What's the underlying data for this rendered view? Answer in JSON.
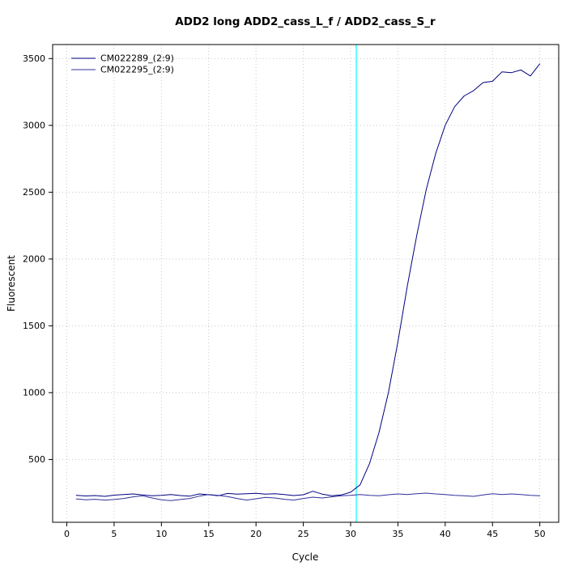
{
  "chart_data": {
    "type": "line",
    "title": "ADD2 long ADD2_cass_L_f / ADD2_cass_S_r",
    "xlabel": "Cycle",
    "ylabel": "Fluorescent",
    "xticks": [
      0,
      5,
      10,
      15,
      20,
      25,
      30,
      35,
      40,
      45,
      50
    ],
    "yticks": [
      500,
      1000,
      1500,
      2000,
      2500,
      3000,
      3500
    ],
    "xlim": [
      -1.5,
      52
    ],
    "ylim": [
      30,
      3605
    ],
    "grid": true,
    "legend_position": "top-left",
    "background_color": "#ffffff",
    "grid_color": "#c8c8c8",
    "axis_color": "#000000",
    "threshold_line": {
      "x": 30.6,
      "color": "#00ffff"
    },
    "x": [
      1,
      2,
      3,
      4,
      5,
      6,
      7,
      8,
      9,
      10,
      11,
      12,
      13,
      14,
      15,
      16,
      17,
      18,
      19,
      20,
      21,
      22,
      23,
      24,
      25,
      26,
      27,
      28,
      29,
      30,
      31,
      32,
      33,
      34,
      35,
      36,
      37,
      38,
      39,
      40,
      41,
      42,
      43,
      44,
      45,
      46,
      47,
      48,
      49,
      50
    ],
    "series": [
      {
        "name": "CM022289_(2:9)",
        "color": "#000080",
        "values": [
          232,
          227,
          230,
          224,
          233,
          238,
          242,
          234,
          228,
          232,
          238,
          230,
          226,
          242,
          236,
          229,
          246,
          240,
          244,
          247,
          241,
          244,
          238,
          230,
          236,
          262,
          241,
          229,
          234,
          255,
          310,
          470,
          700,
          1000,
          1380,
          1800,
          2180,
          2520,
          2790,
          3000,
          3140,
          3220,
          3260,
          3320,
          3330,
          3400,
          3395,
          3415,
          3370,
          3460
        ]
      },
      {
        "name": "CM022295_(2:9)",
        "color": "#31319c",
        "values": [
          205,
          198,
          202,
          196,
          200,
          208,
          220,
          228,
          212,
          198,
          192,
          200,
          208,
          226,
          238,
          232,
          222,
          208,
          196,
          206,
          216,
          212,
          202,
          196,
          208,
          218,
          212,
          220,
          228,
          232,
          238,
          232,
          228,
          236,
          242,
          238,
          244,
          248,
          242,
          238,
          232,
          228,
          224,
          234,
          244,
          238,
          242,
          238,
          232,
          228
        ]
      }
    ]
  }
}
